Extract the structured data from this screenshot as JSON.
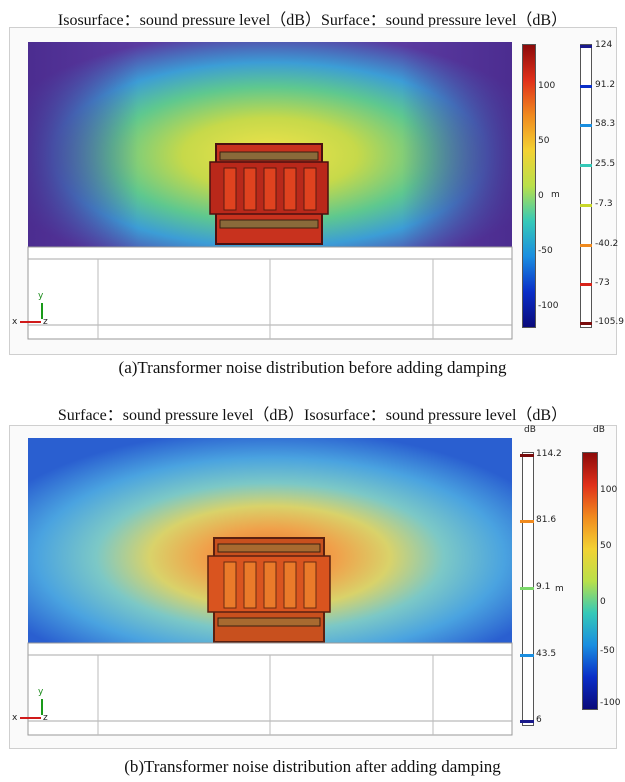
{
  "panel_a": {
    "header": "Isosurface：sound pressure level（dB）Surface：sound pressure level（dB）",
    "caption": "(a)Transformer noise distribution before adding damping",
    "surface_ticks": [
      "100",
      "50",
      "0",
      "-50",
      "-100"
    ],
    "surface_unit": "m",
    "iso_values": [
      "124",
      "91.2",
      "58.3",
      "25.5",
      "-7.3",
      "-40.2",
      "-73",
      "-105.9"
    ],
    "iso_colors": [
      "#1a1a8c",
      "#0a2ec8",
      "#1a8ee0",
      "#35c9b8",
      "#c9d82a",
      "#f08a1e",
      "#d8231a",
      "#7a0d0d"
    ],
    "axes": {
      "y": "y",
      "x": "x",
      "z": "z"
    }
  },
  "panel_b": {
    "header": "Surface：sound pressure level（dB）Isosurface：sound pressure level（dB）",
    "caption": "(b)Transformer noise distribution after adding damping",
    "iso_unit": "dB",
    "surface_unit": "dB",
    "iso_values": [
      "114.2",
      "81.6",
      "9.1",
      "43.5",
      "6"
    ],
    "iso_colors": [
      "#7a0d0d",
      "#f08a1e",
      "#7bd86a",
      "#1a8ee0",
      "#1a1a8c"
    ],
    "surface_ticks": [
      "100",
      "50",
      "0",
      "-50",
      "-100"
    ],
    "inline_unit": "m",
    "axes": {
      "y": "y",
      "x": "x",
      "z": "z"
    }
  }
}
